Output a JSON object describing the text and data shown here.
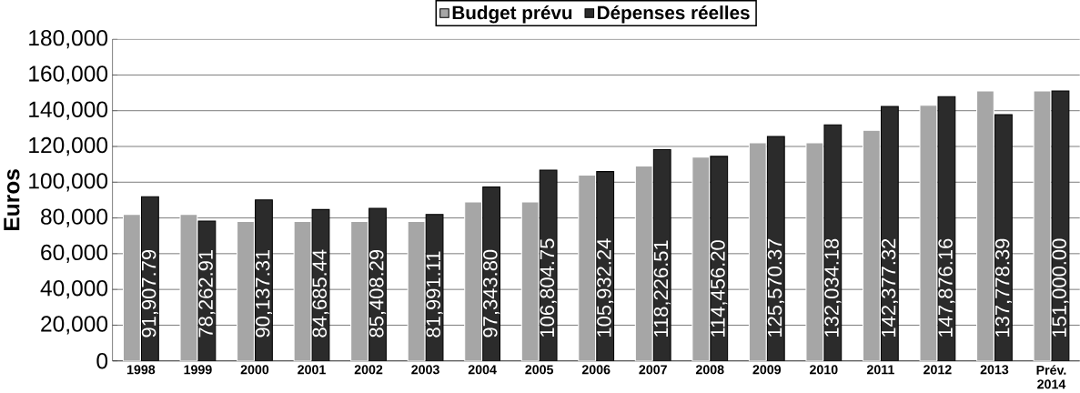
{
  "chart_data": {
    "type": "bar",
    "ylabel": "Euros",
    "categories": [
      "1998",
      "1999",
      "2000",
      "2001",
      "2002",
      "2003",
      "2004",
      "2005",
      "2006",
      "2007",
      "2008",
      "2009",
      "2010",
      "2011",
      "2012",
      "2013",
      "Prév. 2014"
    ],
    "series": [
      {
        "name": "Budget prévu",
        "color": "#a6a6a6",
        "values": [
          82000,
          82000,
          78000,
          78000,
          78000,
          78000,
          89000,
          89000,
          104000,
          109000,
          114000,
          122000,
          122000,
          129000,
          143000,
          151000,
          151000
        ]
      },
      {
        "name": "Dépenses réelles",
        "color": "#2b2b2b",
        "values": [
          91907.79,
          78262.91,
          90137.31,
          84685.44,
          85408.29,
          81991.11,
          97343.8,
          106804.75,
          105932.24,
          118226.51,
          114456.2,
          125570.37,
          132034.18,
          142377.32,
          147876.16,
          137778.39,
          151000.0
        ],
        "value_labels": [
          "91,907.79",
          "78,262.91",
          "90,137.31",
          "84,685.44",
          "85,408.29",
          "81,991.11",
          "97,343.80",
          "106,804.75",
          "105,932.24",
          "118,226.51",
          "114,456.20",
          "125,570.37",
          "132,034.18",
          "142,377.32",
          "147,876.16",
          "137,778.39",
          "151,000.00"
        ]
      }
    ],
    "ylim": [
      0,
      180000
    ],
    "yticks": [
      {
        "value": 0,
        "label": "0"
      },
      {
        "value": 20000,
        "label": "20,000"
      },
      {
        "value": 40000,
        "label": "40,000"
      },
      {
        "value": 60000,
        "label": "60,000"
      },
      {
        "value": 80000,
        "label": "80,000"
      },
      {
        "value": 100000,
        "label": "100,000"
      },
      {
        "value": 120000,
        "label": "120,000"
      },
      {
        "value": 140000,
        "label": "140,000"
      },
      {
        "value": 160000,
        "label": "160,000"
      },
      {
        "value": 180000,
        "label": "180,000"
      }
    ],
    "grid": "y",
    "legend": "top"
  }
}
